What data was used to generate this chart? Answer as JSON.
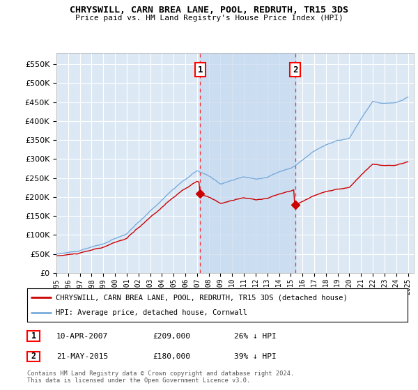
{
  "title": "CHRYSWILL, CARN BREA LANE, POOL, REDRUTH, TR15 3DS",
  "subtitle": "Price paid vs. HM Land Registry's House Price Index (HPI)",
  "plot_bg_color": "#dce9f5",
  "shade_color": "#c5d8ee",
  "ylim": [
    0,
    580000
  ],
  "yticks": [
    0,
    50000,
    100000,
    150000,
    200000,
    250000,
    300000,
    350000,
    400000,
    450000,
    500000,
    550000
  ],
  "xlim_start": 1995.0,
  "xlim_end": 2025.5,
  "hpi_color": "#7aabdc",
  "price_color": "#cc0000",
  "marker1_year": 2007.27,
  "marker1_price": 209000,
  "marker1_label": "1",
  "marker2_year": 2015.39,
  "marker2_price": 180000,
  "marker2_label": "2",
  "legend_line1": "CHRYSWILL, CARN BREA LANE, POOL, REDRUTH, TR15 3DS (detached house)",
  "legend_line2": "HPI: Average price, detached house, Cornwall",
  "footer": "Contains HM Land Registry data © Crown copyright and database right 2024.\nThis data is licensed under the Open Government Licence v3.0.",
  "table_row1": [
    "1",
    "10-APR-2007",
    "£209,000",
    "26% ↓ HPI"
  ],
  "table_row2": [
    "2",
    "21-MAY-2015",
    "£180,000",
    "39% ↓ HPI"
  ]
}
